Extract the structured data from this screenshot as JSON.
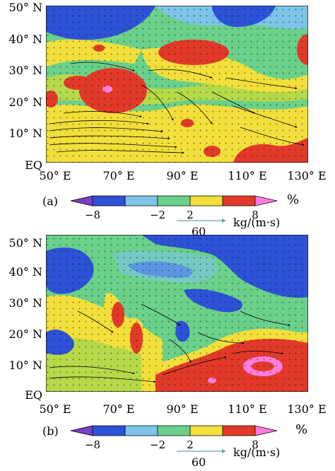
{
  "panels": [
    {
      "label": "(a)",
      "y_ticks": [
        "50° N",
        "40° N",
        "30° N",
        "20° N",
        "10° N",
        "EQ"
      ],
      "x_ticks": [
        "50° E",
        "70° E",
        "90° E",
        "110° E",
        "130° E"
      ],
      "colorbar": {
        "tick_labels": [
          "−8",
          "−2",
          "2",
          "8"
        ],
        "unit": "%",
        "colors": [
          "#7a3fc7",
          "#2e52d6",
          "#7cc4e8",
          "#6ad08a",
          "#b6d94a",
          "#f2df3b",
          "#ff7a3a",
          "#e23a2a",
          "#ff7ee0"
        ]
      },
      "vector_key": {
        "value": "60",
        "unit": "kg/(m·s)"
      }
    },
    {
      "label": "(b)",
      "y_ticks": [
        "50° N",
        "40° N",
        "30° N",
        "20° N",
        "10° N",
        "EQ"
      ],
      "x_ticks": [
        "50° E",
        "70° E",
        "90° E",
        "110° E",
        "130° E"
      ],
      "colorbar": {
        "tick_labels": [
          "−8",
          "−2",
          "2",
          "8"
        ],
        "unit": "%",
        "colors": [
          "#7a3fc7",
          "#2e52d6",
          "#7cc4e8",
          "#6ad08a",
          "#b6d94a",
          "#f2df3b",
          "#ff7a3a",
          "#e23a2a",
          "#ff7ee0"
        ]
      },
      "vector_key": {
        "value": "60",
        "unit": "kg/(m·s)"
      }
    }
  ]
}
